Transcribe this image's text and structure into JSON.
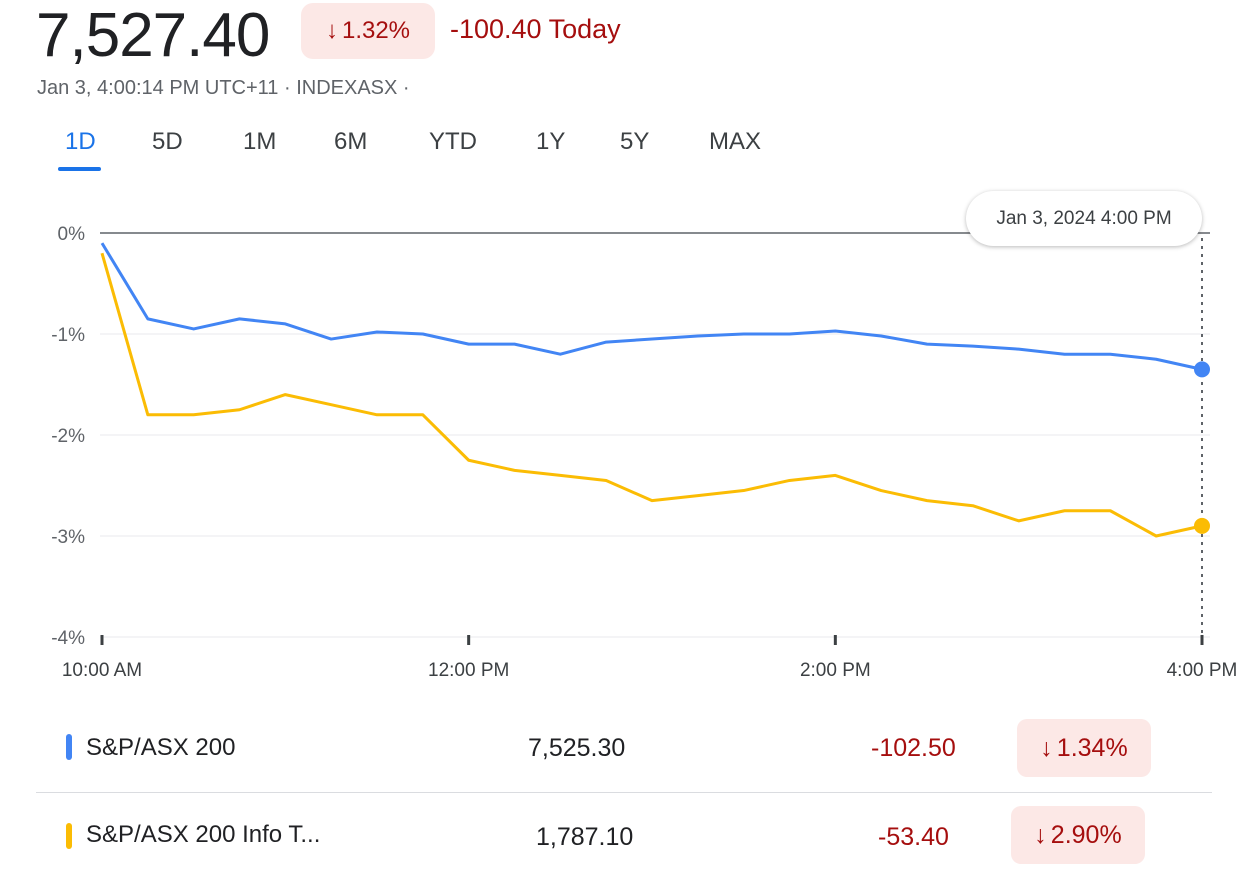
{
  "header": {
    "price": "7,527.40",
    "change_pct": "1.32%",
    "change_arrow": "↓",
    "change_today": "-100.40 Today",
    "meta": "Jan 3, 4:00:14 PM UTC+11 · INDEXASX ·"
  },
  "tabs": [
    {
      "label": "1D",
      "active": true
    },
    {
      "label": "5D"
    },
    {
      "label": "1M"
    },
    {
      "label": "6M"
    },
    {
      "label": "YTD"
    },
    {
      "label": "1Y"
    },
    {
      "label": "5Y"
    },
    {
      "label": "MAX"
    }
  ],
  "tooltip": "Jan 3, 2024 4:00 PM",
  "colors": {
    "blue": "#4285f4",
    "yellow": "#fbbc04",
    "negative": "#a50e0e",
    "negative_bg": "#fce8e6",
    "accent": "#1a73e8"
  },
  "chart_data": {
    "type": "line",
    "x_unit": "time",
    "x": [
      "10:00",
      "10:15",
      "10:30",
      "10:45",
      "11:00",
      "11:15",
      "11:30",
      "11:45",
      "12:00",
      "12:15",
      "12:30",
      "12:45",
      "13:00",
      "13:15",
      "13:30",
      "13:45",
      "14:00",
      "14:15",
      "14:30",
      "14:45",
      "15:00",
      "15:15",
      "15:30",
      "15:45",
      "16:00"
    ],
    "x_ticks": [
      "10:00 AM",
      "12:00 PM",
      "2:00 PM",
      "4:00 PM"
    ],
    "y_ticks": [
      "0%",
      "-1%",
      "-2%",
      "-3%",
      "-4%"
    ],
    "ylim": [
      -4,
      0
    ],
    "series": [
      {
        "name": "S&P/ASX 200",
        "color": "#4285f4",
        "values": [
          -0.1,
          -0.85,
          -0.95,
          -0.85,
          -0.9,
          -1.05,
          -0.98,
          -1.0,
          -1.1,
          -1.1,
          -1.2,
          -1.08,
          -1.05,
          -1.02,
          -1.0,
          -1.0,
          -0.97,
          -1.02,
          -1.1,
          -1.12,
          -1.15,
          -1.2,
          -1.2,
          -1.25,
          -1.35
        ]
      },
      {
        "name": "S&P/ASX 200 Info T...",
        "color": "#fbbc04",
        "values": [
          -0.2,
          -1.8,
          -1.8,
          -1.75,
          -1.6,
          -1.7,
          -1.8,
          -1.8,
          -2.25,
          -2.35,
          -2.4,
          -2.45,
          -2.65,
          -2.6,
          -2.55,
          -2.45,
          -2.4,
          -2.55,
          -2.65,
          -2.7,
          -2.85,
          -2.75,
          -2.75,
          -3.0,
          -2.9
        ]
      }
    ]
  },
  "rows": [
    {
      "name": "S&P/ASX 200",
      "value": "7,525.30",
      "change": "-102.50",
      "pct": "1.34%",
      "arrow": "↓",
      "color": "#4285f4"
    },
    {
      "name": "S&P/ASX 200 Info T...",
      "value": "1,787.10",
      "change": "-53.40",
      "pct": "2.90%",
      "arrow": "↓",
      "color": "#fbbc04"
    }
  ]
}
